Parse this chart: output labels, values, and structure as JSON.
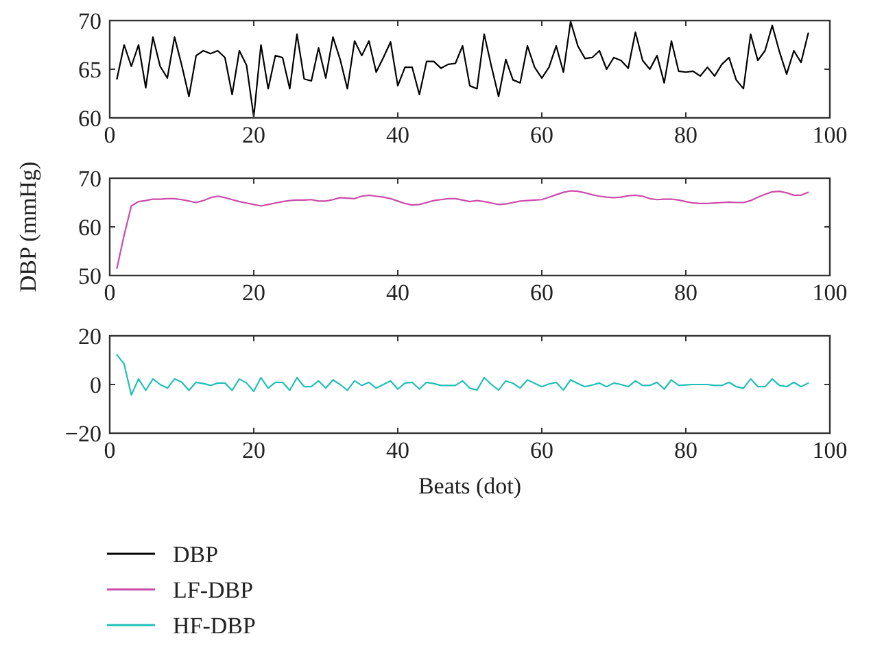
{
  "chart_data": [
    {
      "type": "line",
      "x": [
        1,
        2,
        3,
        4,
        5,
        6,
        7,
        8,
        9,
        10,
        11,
        12,
        13,
        14,
        15,
        16,
        17,
        18,
        19,
        20,
        21,
        22,
        23,
        24,
        25,
        26,
        27,
        28,
        29,
        30,
        31,
        32,
        33,
        34,
        35,
        36,
        37,
        38,
        39,
        40,
        41,
        42,
        43,
        44,
        45,
        46,
        47,
        48,
        49,
        50,
        51,
        52,
        53,
        54,
        55,
        56,
        57,
        58,
        59,
        60,
        61,
        62,
        63,
        64,
        65,
        66,
        67,
        68,
        69,
        70,
        71,
        72,
        73,
        74,
        75,
        76,
        77,
        78,
        79,
        80,
        81,
        82,
        83,
        84,
        85,
        86,
        87,
        88,
        89,
        90,
        91,
        92,
        93,
        94,
        95,
        96,
        97
      ],
      "xlim": [
        0,
        100
      ],
      "xticks": [
        0,
        20,
        40,
        60,
        80,
        100
      ],
      "ylim": [
        60,
        70
      ],
      "yticks": [
        60,
        65,
        70
      ],
      "legend": "bottom",
      "series": [
        {
          "name": "DBP",
          "color": "#000000",
          "values": [
            64,
            67.5,
            65.3,
            67.5,
            63.1,
            68.3,
            65.3,
            64.1,
            68.3,
            65.4,
            62.2,
            66.4,
            66.9,
            66.6,
            66.9,
            66.2,
            62.4,
            66.9,
            65.4,
            60.1,
            67.5,
            63,
            66.4,
            66.2,
            63,
            68.6,
            64,
            63.8,
            67.2,
            64.1,
            68.3,
            66,
            63,
            67.9,
            66.4,
            67.9,
            64.7,
            66.2,
            67.8,
            63.3,
            65.2,
            65.2,
            62.4,
            65.8,
            65.8,
            65.1,
            65.5,
            65.6,
            67.4,
            63.3,
            63,
            68.6,
            65.3,
            62.2,
            66,
            63.9,
            63.6,
            67.4,
            65.2,
            64.1,
            65.2,
            67.4,
            64.7,
            69.9,
            67.4,
            66.1,
            66.2,
            66.9,
            65,
            66.2,
            65.9,
            65.1,
            68.8,
            65.9,
            65,
            66.4,
            63.6,
            67.9,
            64.8,
            64.7,
            64.8,
            64.3,
            65.2,
            64.3,
            65.5,
            66.2,
            63.9,
            63,
            68.6,
            65.9,
            66.9,
            69.5,
            66.8,
            64.5,
            66.9,
            65.7,
            68.7
          ]
        }
      ]
    },
    {
      "type": "line",
      "x": [
        1,
        2,
        3,
        4,
        5,
        6,
        7,
        8,
        9,
        10,
        11,
        12,
        13,
        14,
        15,
        16,
        17,
        18,
        19,
        20,
        21,
        22,
        23,
        24,
        25,
        26,
        27,
        28,
        29,
        30,
        31,
        32,
        33,
        34,
        35,
        36,
        37,
        38,
        39,
        40,
        41,
        42,
        43,
        44,
        45,
        46,
        47,
        48,
        49,
        50,
        51,
        52,
        53,
        54,
        55,
        56,
        57,
        58,
        59,
        60,
        61,
        62,
        63,
        64,
        65,
        66,
        67,
        68,
        69,
        70,
        71,
        72,
        73,
        74,
        75,
        76,
        77,
        78,
        79,
        80,
        81,
        82,
        83,
        84,
        85,
        86,
        87,
        88,
        89,
        90,
        91,
        92,
        93,
        94,
        95,
        96,
        97
      ],
      "xlim": [
        0,
        100
      ],
      "xticks": [
        0,
        20,
        40,
        60,
        80,
        100
      ],
      "ylim": [
        50,
        70
      ],
      "yticks": [
        50,
        60,
        70
      ],
      "ylabel": "DBP (mmHg)",
      "legend": "bottom",
      "series": [
        {
          "name": "LF-DBP",
          "color": "#cc4aaa",
          "values": [
            51.5,
            58.3,
            64.3,
            65.2,
            65.4,
            65.7,
            65.7,
            65.8,
            65.8,
            65.6,
            65.3,
            65,
            65.4,
            66,
            66.3,
            66,
            65.6,
            65.2,
            64.9,
            64.6,
            64.3,
            64.6,
            64.9,
            65.2,
            65.4,
            65.5,
            65.5,
            65.6,
            65.3,
            65.3,
            65.6,
            66,
            65.9,
            65.8,
            66.3,
            66.5,
            66.3,
            66.1,
            65.8,
            65.3,
            64.8,
            64.5,
            64.6,
            65,
            65.4,
            65.6,
            65.8,
            65.8,
            65.5,
            65.2,
            65.4,
            65.2,
            64.9,
            64.6,
            64.7,
            65,
            65.3,
            65.4,
            65.5,
            65.6,
            66.1,
            66.6,
            67.1,
            67.4,
            67.3,
            67,
            66.6,
            66.3,
            66.1,
            66,
            66.1,
            66.4,
            66.5,
            66.3,
            65.8,
            65.6,
            65.7,
            65.7,
            65.5,
            65.2,
            64.9,
            64.8,
            64.8,
            64.9,
            65,
            65.1,
            65,
            65,
            65.4,
            66.1,
            66.7,
            67.2,
            67.3,
            67,
            66.5,
            66.5,
            67.1
          ]
        }
      ]
    },
    {
      "type": "line",
      "x": [
        1,
        2,
        3,
        4,
        5,
        6,
        7,
        8,
        9,
        10,
        11,
        12,
        13,
        14,
        15,
        16,
        17,
        18,
        19,
        20,
        21,
        22,
        23,
        24,
        25,
        26,
        27,
        28,
        29,
        30,
        31,
        32,
        33,
        34,
        35,
        36,
        37,
        38,
        39,
        40,
        41,
        42,
        43,
        44,
        45,
        46,
        47,
        48,
        49,
        50,
        51,
        52,
        53,
        54,
        55,
        56,
        57,
        58,
        59,
        60,
        61,
        62,
        63,
        64,
        65,
        66,
        67,
        68,
        69,
        70,
        71,
        72,
        73,
        74,
        75,
        76,
        77,
        78,
        79,
        80,
        81,
        82,
        83,
        84,
        85,
        86,
        87,
        88,
        89,
        90,
        91,
        92,
        93,
        94,
        95,
        96,
        97
      ],
      "xlim": [
        0,
        100
      ],
      "xticks": [
        0,
        20,
        40,
        60,
        80,
        100
      ],
      "ylim": [
        -20,
        20
      ],
      "yticks": [
        {
          "value": -20,
          "label": "−20"
        },
        0,
        20
      ],
      "xlabel": "Beats (dot)",
      "legend": "bottom",
      "series": [
        {
          "name": "HF-DBP",
          "color": "#1fbfb8",
          "values": [
            12.2,
            8.4,
            -4.3,
            2.3,
            -2.4,
            2.3,
            0,
            -1.5,
            2.3,
            0.9,
            -2.4,
            0.9,
            0.4,
            -0.4,
            0.6,
            0.6,
            -2.4,
            2.3,
            0.6,
            -2.8,
            2.8,
            -1.5,
            0.9,
            0.9,
            -2.4,
            2.8,
            -0.9,
            -0.9,
            1.5,
            -1.5,
            1.9,
            0,
            -2.4,
            1.5,
            -0.4,
            0.9,
            -1.5,
            0,
            1.5,
            -1.9,
            0.6,
            0.9,
            -1.9,
            0.9,
            0.4,
            -0.4,
            -0.4,
            -0.4,
            1.5,
            -1.5,
            -2.3,
            2.8,
            0,
            -2.3,
            1.5,
            0.5,
            -1.5,
            1.9,
            0.5,
            -0.9,
            0.2,
            0.9,
            -2.3,
            1.9,
            0.4,
            -0.9,
            -0.2,
            0.6,
            -0.9,
            0.6,
            0,
            -0.9,
            1.5,
            -0.4,
            -0.4,
            0.9,
            -1.9,
            1.9,
            -0.4,
            -0.2,
            0,
            0,
            0,
            -0.4,
            -0.4,
            0.9,
            -0.9,
            -1.5,
            2.3,
            -0.9,
            -0.9,
            2.3,
            -0.4,
            -0.9,
            0.9,
            -0.9,
            0.6
          ]
        }
      ]
    }
  ]
}
